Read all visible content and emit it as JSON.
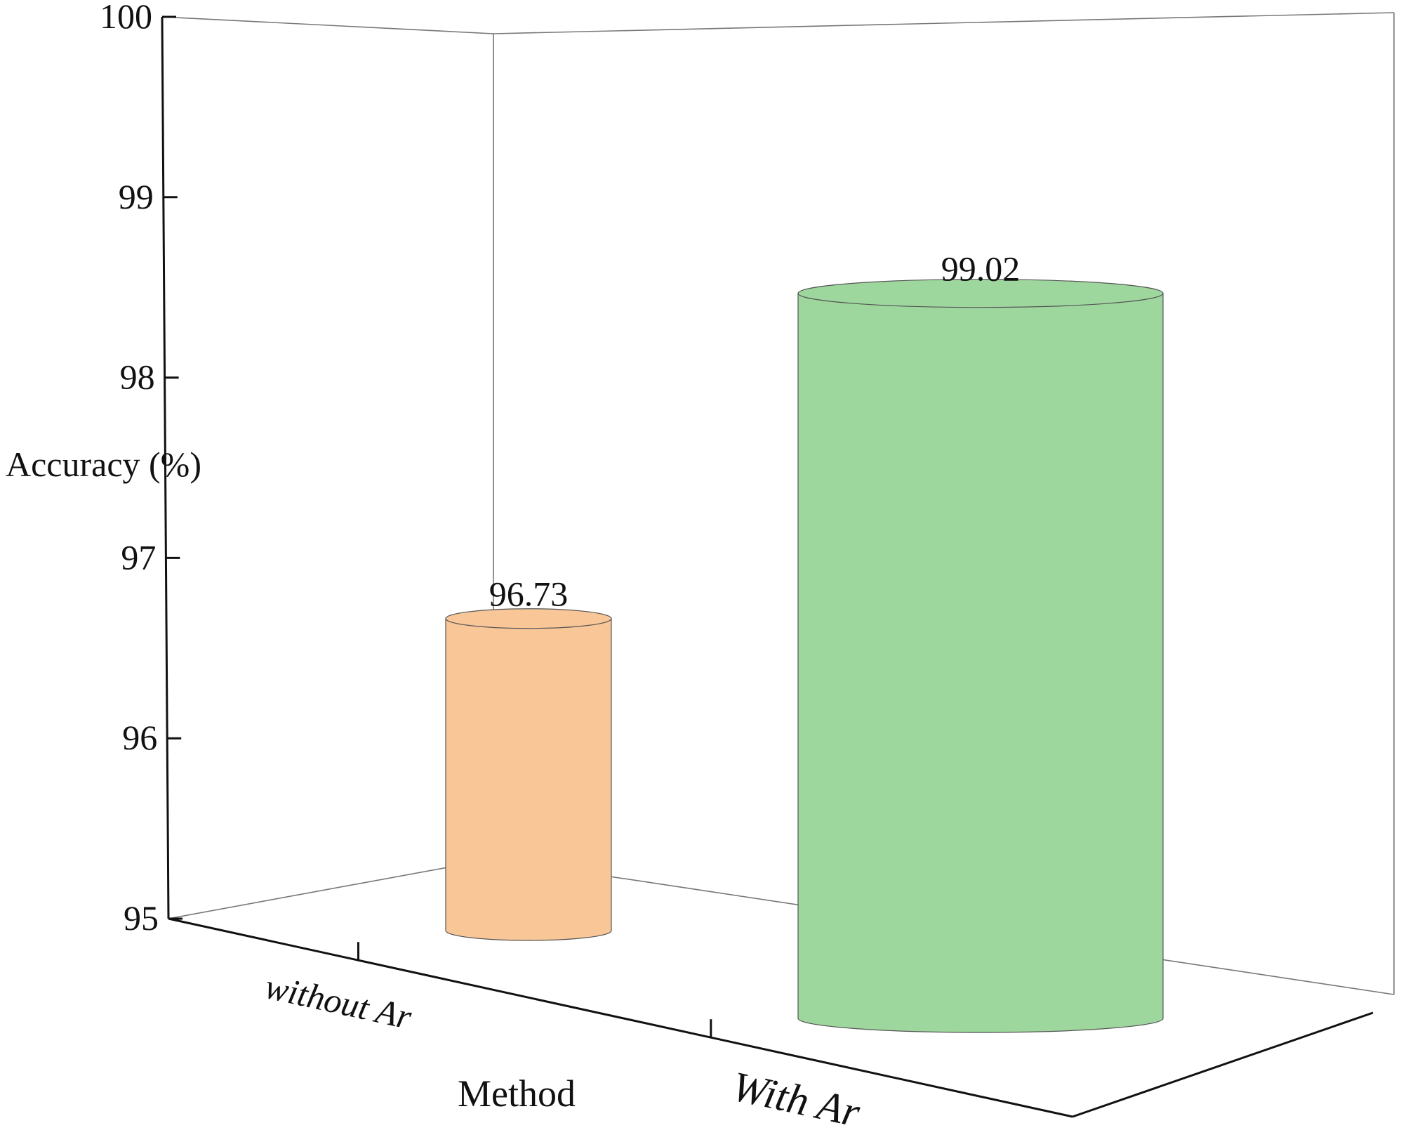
{
  "chart_data": {
    "type": "bar",
    "style": "3d-cylinder",
    "categories": [
      "without Ar",
      "With Ar"
    ],
    "values": [
      96.73,
      99.02
    ],
    "data_labels": [
      "96.73",
      "99.02"
    ],
    "colors": [
      "#F9C698",
      "#9ED79E"
    ],
    "xlabel": "Method",
    "ylabel": "Accuracy (%)",
    "ylim": [
      95,
      100
    ],
    "yticks": [
      {
        "value": 95,
        "label": "95"
      },
      {
        "value": 96,
        "label": "96"
      },
      {
        "value": 97,
        "label": "97"
      },
      {
        "value": 98,
        "label": "98"
      },
      {
        "value": 99,
        "label": "99"
      },
      {
        "value": 100,
        "label": "100"
      }
    ],
    "grid": false,
    "legend": "none"
  }
}
